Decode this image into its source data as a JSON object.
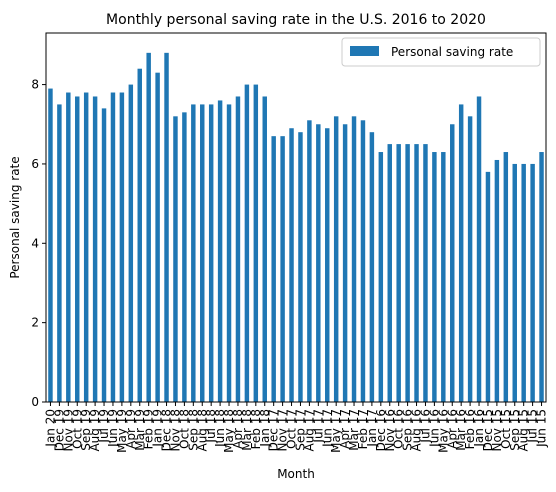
{
  "chart_data": {
    "type": "bar",
    "title": "Monthly personal saving rate in the U.S. 2016 to 2020",
    "xlabel": "Month",
    "ylabel": "Personal saving rate",
    "ylim": [
      0,
      9.3
    ],
    "yticks": [
      "0",
      "2",
      "4",
      "6",
      "8"
    ],
    "grid": false,
    "legend_position": "top-right",
    "bar_color": "#1f77b4",
    "categories": [
      "Jan 20",
      "Dec 19",
      "Nov 19",
      "Oct 19",
      "Sep 19",
      "Aug 19",
      "Jul 19",
      "Jun 19",
      "May 19",
      "Apr 19",
      "Mar 19",
      "Feb 19",
      "Jan 19",
      "Dec 18",
      "Nov 18",
      "Oct 18",
      "Sep 18",
      "Aug 18",
      "Jul 18",
      "Jun 18",
      "May 18",
      "Apr 18",
      "Mar 18",
      "Feb 18",
      "Jan 18",
      "Dec 17",
      "Nov 17",
      "Oct 17",
      "Sep 17",
      "Aug 17",
      "Jul 17",
      "Jun 17",
      "May 17",
      "Apr 17",
      "Mar 17",
      "Feb 17",
      "Jan 17",
      "Dec 16",
      "Nov 16",
      "Oct 16",
      "Sep 16",
      "Aug 16",
      "Jul 16",
      "Jun 16",
      "May 16",
      "Apr 16",
      "Mar 16",
      "Feb 16",
      "Jan 16",
      "Dec 15",
      "Nov 15",
      "Oct 15",
      "Sep 15",
      "Aug 15",
      "Jul 15",
      "Jun 15"
    ],
    "series": [
      {
        "name": "Personal saving rate",
        "values": [
          7.9,
          7.5,
          7.8,
          7.7,
          7.8,
          7.7,
          7.4,
          7.8,
          7.8,
          8.0,
          8.4,
          8.8,
          8.3,
          8.8,
          7.2,
          7.3,
          7.5,
          7.5,
          7.5,
          7.6,
          7.5,
          7.7,
          8.0,
          8.0,
          7.7,
          6.7,
          6.7,
          6.9,
          6.8,
          7.1,
          7.0,
          6.9,
          7.2,
          7.0,
          7.2,
          7.1,
          6.8,
          6.3,
          6.5,
          6.5,
          6.5,
          6.5,
          6.5,
          6.3,
          6.3,
          7.0,
          7.5,
          7.2,
          7.7,
          5.8,
          6.1,
          6.3,
          6.0,
          6.0,
          6.0,
          6.3
        ]
      }
    ]
  }
}
